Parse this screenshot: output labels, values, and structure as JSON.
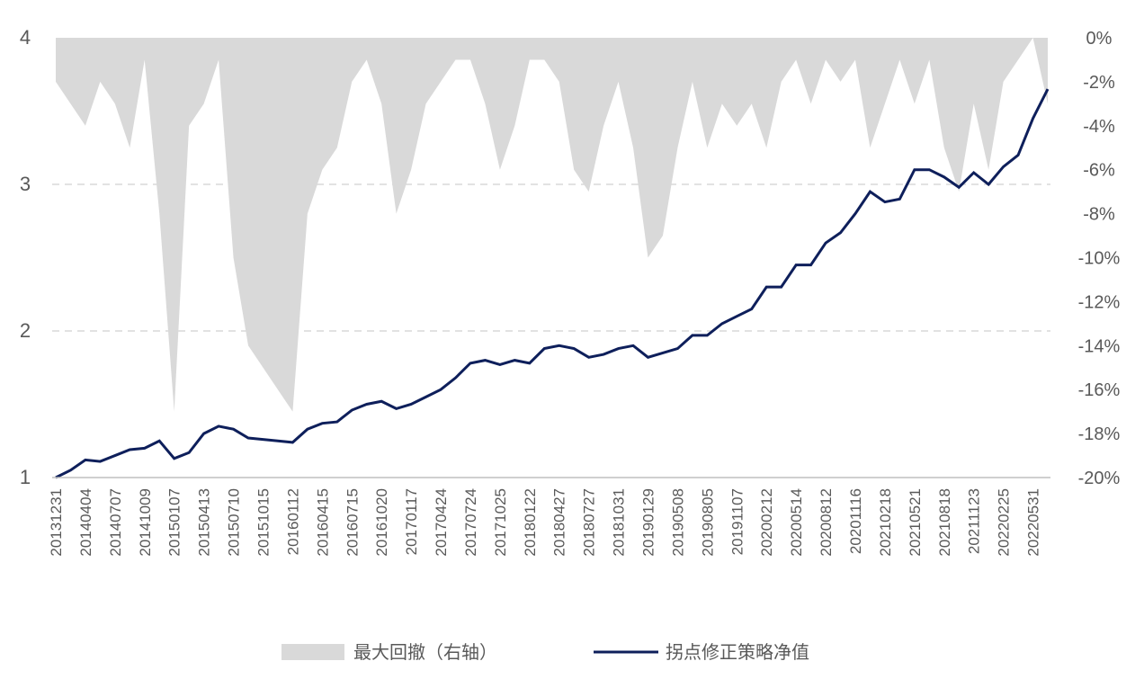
{
  "chart_data": {
    "type": "line",
    "categories": [
      "20131231",
      null,
      "20140404",
      null,
      "20140707",
      null,
      "20141009",
      null,
      "20150107",
      null,
      "20150413",
      null,
      "20150710",
      null,
      "20151015",
      null,
      "20160112",
      null,
      "20160415",
      null,
      "20160715",
      null,
      "20161020",
      null,
      "20170117",
      null,
      "20170424",
      null,
      "20170724",
      null,
      "20171025",
      null,
      "20180122",
      null,
      "20180427",
      null,
      "20180727",
      null,
      "20181031",
      null,
      "20190129",
      null,
      "20190508",
      null,
      "20190805",
      null,
      "20191107",
      null,
      "20200212",
      null,
      "20200514",
      null,
      "20200812",
      null,
      "20201116",
      null,
      "20210218",
      null,
      "20210521",
      null,
      "20210818",
      null,
      "20211123",
      null,
      "20220225",
      null,
      "20220531",
      null
    ],
    "series": [
      {
        "name": "最大回撤（右轴）",
        "type": "area",
        "axis": "y2",
        "color": "#d9d9d9",
        "values": [
          -2,
          -3,
          -4,
          -2,
          -3,
          -5,
          -1,
          -8,
          -17,
          -4,
          -3,
          -1,
          -10,
          -14,
          -15,
          -16,
          -17,
          -8,
          -6,
          -5,
          -2,
          -1,
          -3,
          -8,
          -6,
          -3,
          -2,
          -1,
          -1,
          -3,
          -6,
          -4,
          -1,
          -1,
          -2,
          -6,
          -7,
          -4,
          -2,
          -5,
          -10,
          -9,
          -5,
          -2,
          -5,
          -3,
          -4,
          -3,
          -5,
          -2,
          -1,
          -3,
          -1,
          -2,
          -1,
          -5,
          -3,
          -1,
          -3,
          -1,
          -5,
          -7,
          -3,
          -6,
          -2,
          -1,
          0,
          -3
        ]
      },
      {
        "name": "拐点修正策略净值",
        "type": "line",
        "color": "#0e1f5b",
        "values": [
          1.0,
          1.05,
          1.12,
          1.11,
          1.15,
          1.19,
          1.2,
          1.25,
          1.13,
          1.17,
          1.3,
          1.35,
          1.33,
          1.27,
          1.26,
          1.25,
          1.24,
          1.33,
          1.37,
          1.38,
          1.46,
          1.5,
          1.52,
          1.47,
          1.5,
          1.55,
          1.6,
          1.68,
          1.78,
          1.8,
          1.77,
          1.8,
          1.78,
          1.88,
          1.9,
          1.88,
          1.82,
          1.84,
          1.88,
          1.9,
          1.82,
          1.85,
          1.88,
          1.97,
          1.97,
          2.05,
          2.1,
          2.15,
          2.3,
          2.3,
          2.45,
          2.45,
          2.6,
          2.67,
          2.8,
          2.95,
          2.88,
          2.9,
          3.1,
          3.1,
          3.05,
          2.98,
          3.08,
          3.0,
          3.12,
          3.2,
          3.45,
          3.65
        ]
      }
    ],
    "ylim": [
      1,
      4
    ],
    "yticks": [
      1,
      2,
      3,
      4
    ],
    "y2lim": [
      -20,
      0
    ],
    "y2ticks": [
      {
        "value": 0,
        "label": "0%"
      },
      {
        "value": -2,
        "label": "-2%"
      },
      {
        "value": -4,
        "label": "-4%"
      },
      {
        "value": -6,
        "label": "-6%"
      },
      {
        "value": -8,
        "label": "-8%"
      },
      {
        "value": -10,
        "label": "-10%"
      },
      {
        "value": -12,
        "label": "-12%"
      },
      {
        "value": -14,
        "label": "-14%"
      },
      {
        "value": -16,
        "label": "-16%"
      },
      {
        "value": -18,
        "label": "-18%"
      },
      {
        "value": -20,
        "label": "-20%"
      }
    ],
    "grid": true,
    "legend": "bottom"
  }
}
